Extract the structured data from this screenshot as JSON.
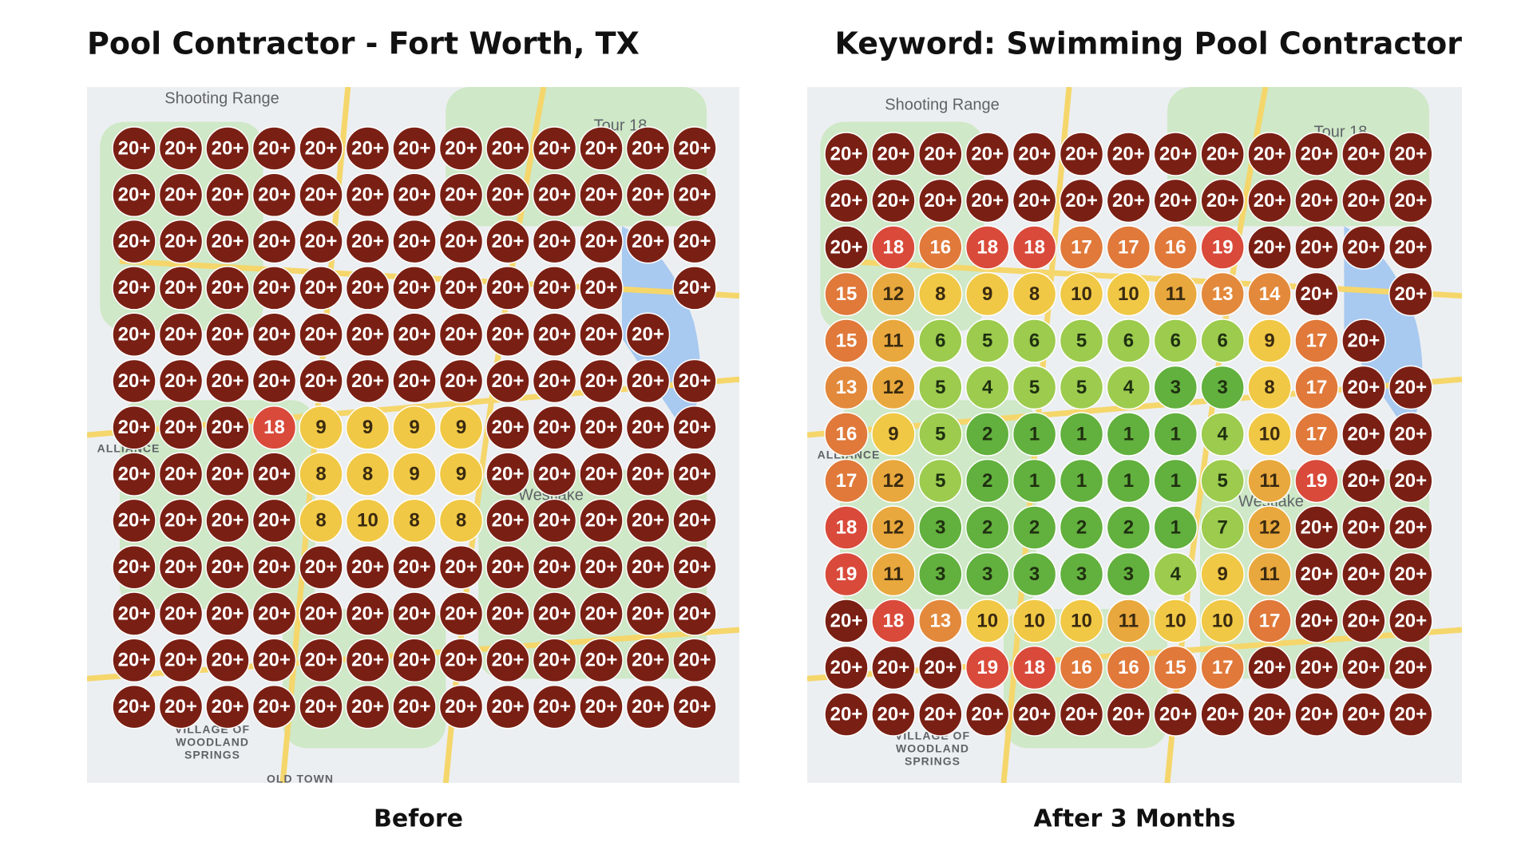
{
  "left": {
    "title": "Pool Contractor - Fort Worth, TX",
    "caption": "Before",
    "map_labels": [
      "Shooting Range",
      "Tour 18",
      "ALLIANCE",
      "Westlake",
      "VILLAGE OF",
      "WOODLAND",
      "SPRINGS",
      "OLD TOWN"
    ],
    "grid": [
      [
        "20+",
        "20+",
        "20+",
        "20+",
        "20+",
        "20+",
        "20+",
        "20+",
        "20+",
        "20+",
        "20+",
        "20+",
        "20+"
      ],
      [
        "20+",
        "20+",
        "20+",
        "20+",
        "20+",
        "20+",
        "20+",
        "20+",
        "20+",
        "20+",
        "20+",
        "20+",
        "20+"
      ],
      [
        "20+",
        "20+",
        "20+",
        "20+",
        "20+",
        "20+",
        "20+",
        "20+",
        "20+",
        "20+",
        "20+",
        "20+",
        "20+"
      ],
      [
        "20+",
        "20+",
        "20+",
        "20+",
        "20+",
        "20+",
        "20+",
        "20+",
        "20+",
        "20+",
        "20+",
        null,
        "20+"
      ],
      [
        "20+",
        "20+",
        "20+",
        "20+",
        "20+",
        "20+",
        "20+",
        "20+",
        "20+",
        "20+",
        "20+",
        "20+",
        null
      ],
      [
        "20+",
        "20+",
        "20+",
        "20+",
        "20+",
        "20+",
        "20+",
        "20+",
        "20+",
        "20+",
        "20+",
        "20+",
        "20+"
      ],
      [
        "20+",
        "20+",
        "20+",
        18,
        9,
        9,
        9,
        9,
        "20+",
        "20+",
        "20+",
        "20+",
        "20+"
      ],
      [
        "20+",
        "20+",
        "20+",
        "20+",
        8,
        8,
        9,
        9,
        "20+",
        "20+",
        "20+",
        "20+",
        "20+"
      ],
      [
        "20+",
        "20+",
        "20+",
        "20+",
        8,
        10,
        8,
        8,
        "20+",
        "20+",
        "20+",
        "20+",
        "20+"
      ],
      [
        "20+",
        "20+",
        "20+",
        "20+",
        "20+",
        "20+",
        "20+",
        "20+",
        "20+",
        "20+",
        "20+",
        "20+",
        "20+"
      ],
      [
        "20+",
        "20+",
        "20+",
        "20+",
        "20+",
        "20+",
        "20+",
        "20+",
        "20+",
        "20+",
        "20+",
        "20+",
        "20+"
      ],
      [
        "20+",
        "20+",
        "20+",
        "20+",
        "20+",
        "20+",
        "20+",
        "20+",
        "20+",
        "20+",
        "20+",
        "20+",
        "20+"
      ],
      [
        "20+",
        "20+",
        "20+",
        "20+",
        "20+",
        "20+",
        "20+",
        "20+",
        "20+",
        "20+",
        "20+",
        "20+",
        "20+"
      ]
    ]
  },
  "right": {
    "title": "Keyword: Swimming Pool Contractor",
    "caption": "After 3 Months",
    "map_labels": [
      "Shooting Range",
      "Tour 18",
      "ALLIANCE",
      "Westlake",
      "VILLAGE OF",
      "WOODLAND",
      "SPRINGS"
    ],
    "grid": [
      [
        "20+",
        "20+",
        "20+",
        "20+",
        "20+",
        "20+",
        "20+",
        "20+",
        "20+",
        "20+",
        "20+",
        "20+",
        "20+"
      ],
      [
        "20+",
        "20+",
        "20+",
        "20+",
        "20+",
        "20+",
        "20+",
        "20+",
        "20+",
        "20+",
        "20+",
        "20+",
        "20+"
      ],
      [
        "20+",
        18,
        16,
        18,
        18,
        17,
        17,
        16,
        19,
        "20+",
        "20+",
        "20+",
        "20+"
      ],
      [
        15,
        12,
        8,
        9,
        8,
        10,
        10,
        11,
        13,
        14,
        "20+",
        null,
        "20+"
      ],
      [
        15,
        11,
        6,
        5,
        6,
        5,
        6,
        6,
        6,
        9,
        17,
        "20+",
        null
      ],
      [
        13,
        12,
        5,
        4,
        5,
        5,
        4,
        3,
        3,
        8,
        17,
        "20+",
        "20+"
      ],
      [
        16,
        9,
        5,
        2,
        1,
        1,
        1,
        1,
        4,
        10,
        17,
        "20+",
        "20+"
      ],
      [
        17,
        12,
        5,
        2,
        1,
        1,
        1,
        1,
        5,
        11,
        19,
        "20+",
        "20+"
      ],
      [
        18,
        12,
        3,
        2,
        2,
        2,
        2,
        1,
        7,
        12,
        "20+",
        "20+",
        "20+"
      ],
      [
        19,
        11,
        3,
        3,
        3,
        3,
        3,
        4,
        9,
        11,
        "20+",
        "20+",
        "20+"
      ],
      [
        "20+",
        18,
        13,
        10,
        10,
        10,
        11,
        10,
        10,
        17,
        "20+",
        "20+",
        "20+"
      ],
      [
        "20+",
        "20+",
        "20+",
        19,
        18,
        16,
        16,
        15,
        17,
        "20+",
        "20+",
        "20+",
        "20+"
      ],
      [
        "20+",
        "20+",
        "20+",
        "20+",
        "20+",
        "20+",
        "20+",
        "20+",
        "20+",
        "20+",
        "20+",
        "20+",
        "20+"
      ]
    ]
  }
}
